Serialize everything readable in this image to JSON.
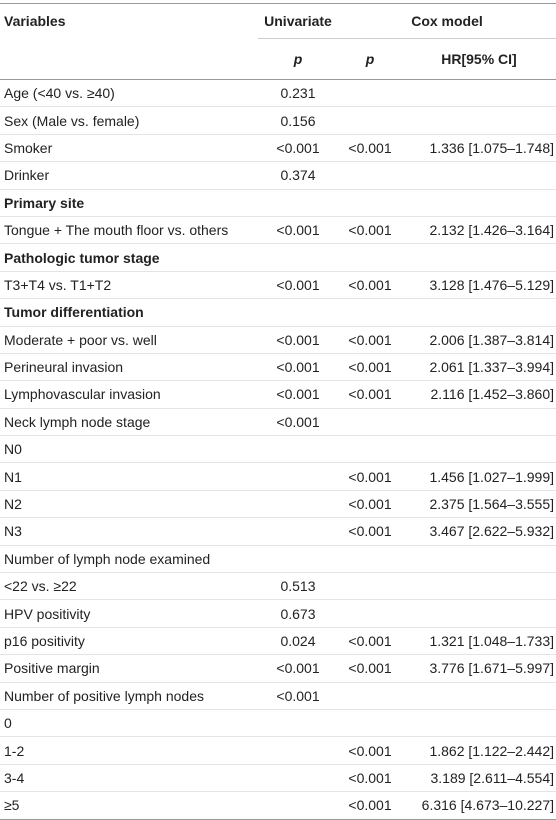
{
  "header": {
    "variables": "Variables",
    "univariate": "Univariate",
    "cox_model": "Cox model",
    "univariate_p": "p",
    "cox_p": "p",
    "hr": "HR[95% CI]"
  },
  "rows": [
    {
      "variable": "Age (<40 vs. ≥40)",
      "univariate_p": "0.231"
    },
    {
      "variable": "Sex (Male vs. female)",
      "univariate_p": "0.156"
    },
    {
      "variable": "Smoker",
      "univariate_p": "<0.001",
      "cox_p": "<0.001",
      "hr": "1.336 [1.075–1.748]"
    },
    {
      "variable": "Drinker",
      "univariate_p": "0.374"
    },
    {
      "section": "Primary site"
    },
    {
      "variable": "Tongue + The mouth floor vs. others",
      "univariate_p": "<0.001",
      "cox_p": "<0.001",
      "hr": "2.132 [1.426–3.164]"
    },
    {
      "section": "Pathologic tumor stage"
    },
    {
      "variable": "T3+T4 vs. T1+T2",
      "univariate_p": "<0.001",
      "cox_p": "<0.001",
      "hr": "3.128 [1.476–5.129]"
    },
    {
      "section": "Tumor differentiation"
    },
    {
      "variable": "Moderate + poor vs. well",
      "univariate_p": "<0.001",
      "cox_p": "<0.001",
      "hr": "2.006 [1.387–3.814]"
    },
    {
      "variable": "Perineural invasion",
      "univariate_p": "<0.001",
      "cox_p": "<0.001",
      "hr": "2.061 [1.337–3.994]"
    },
    {
      "variable": "Lymphovascular invasion",
      "univariate_p": "<0.001",
      "cox_p": "<0.001",
      "hr": "2.116 [1.452–3.860]"
    },
    {
      "variable": "Neck lymph node stage",
      "univariate_p": "<0.001"
    },
    {
      "variable": "N0"
    },
    {
      "variable": "N1",
      "cox_p": "<0.001",
      "hr": "1.456 [1.027–1.999]"
    },
    {
      "variable": "N2",
      "cox_p": "<0.001",
      "hr": "2.375 [1.564–3.555]"
    },
    {
      "variable": "N3",
      "cox_p": "<0.001",
      "hr": "3.467 [2.622–5.932]"
    },
    {
      "variable": "Number of lymph node examined"
    },
    {
      "variable": "<22 vs. ≥22",
      "univariate_p": "0.513"
    },
    {
      "variable": "HPV positivity",
      "univariate_p": "0.673"
    },
    {
      "variable": "p16 positivity",
      "univariate_p": "0.024",
      "cox_p": "<0.001",
      "hr": "1.321 [1.048–1.733]"
    },
    {
      "variable": "Positive margin",
      "univariate_p": "<0.001",
      "cox_p": "<0.001",
      "hr": "3.776 [1.671–5.997]"
    },
    {
      "variable": "Number of positive lymph nodes",
      "univariate_p": "<0.001"
    },
    {
      "variable": "0"
    },
    {
      "variable": "1-2",
      "cox_p": "<0.001",
      "hr": "1.862 [1.122–2.442]"
    },
    {
      "variable": "3-4",
      "cox_p": "<0.001",
      "hr": "3.189 [2.611–4.554]"
    },
    {
      "variable": "≥5",
      "cox_p": "<0.001",
      "hr": "6.316 [4.673–10.227]"
    }
  ]
}
